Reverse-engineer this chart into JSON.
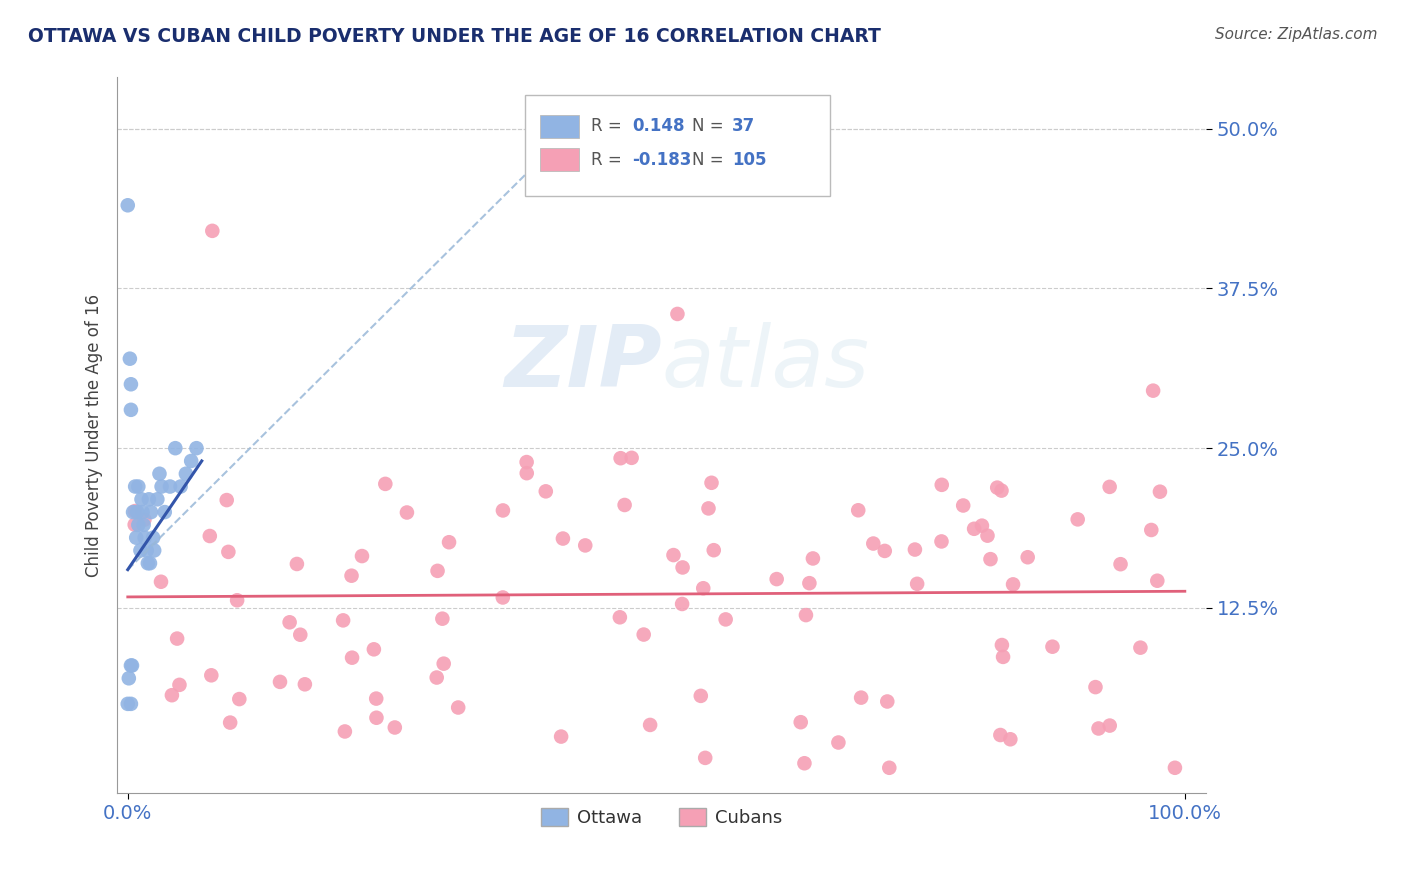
{
  "title": "OTTAWA VS CUBAN CHILD POVERTY UNDER THE AGE OF 16 CORRELATION CHART",
  "source": "Source: ZipAtlas.com",
  "ylabel": "Child Poverty Under the Age of 16",
  "ytick_labels": [
    "12.5%",
    "25.0%",
    "37.5%",
    "50.0%"
  ],
  "ytick_values": [
    0.125,
    0.25,
    0.375,
    0.5
  ],
  "xlim": [
    -0.01,
    1.02
  ],
  "ylim": [
    -0.02,
    0.54
  ],
  "ottawa_color": "#91b4e3",
  "cubans_color": "#f5a0b5",
  "ottawa_trendline_color": "#7090cc",
  "ottawa_trendline_solid_color": "#3355aa",
  "cubans_line_color": "#e0607a",
  "watermark": "ZIPatlas",
  "title_color": "#1a2e6e",
  "source_color": "#555555",
  "ytick_color": "#4472c4",
  "xtick_color": "#4472c4",
  "grid_color": "#cccccc",
  "legend_r_color": "#555555",
  "legend_n_color": "#4472c4",
  "legend_val_color": "#4472c4",
  "ottawa_seed": 12,
  "cubans_seed": 99
}
